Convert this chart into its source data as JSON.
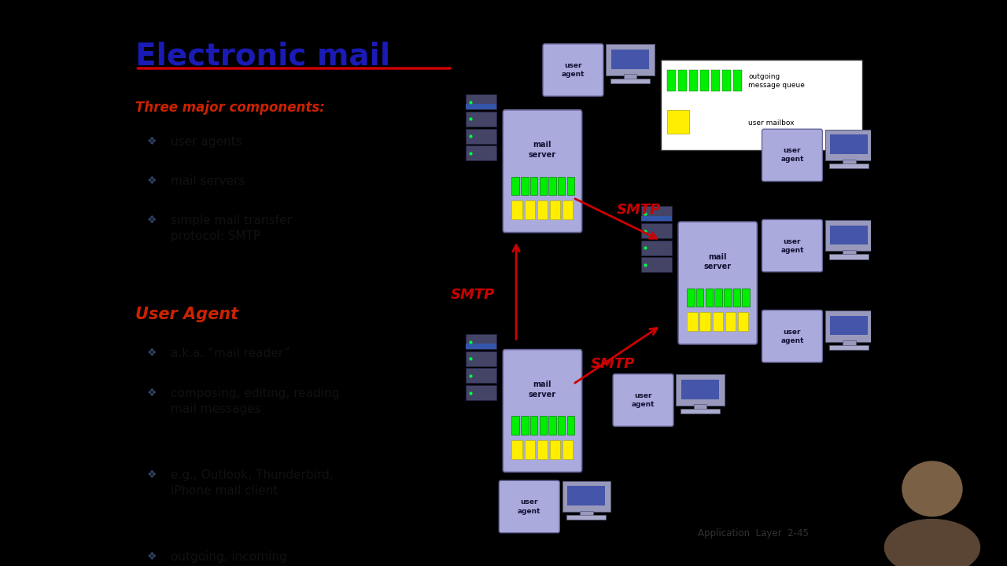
{
  "title": "Electronic mail",
  "title_color": "#1a1ab5",
  "title_underline_color": "#cc0000",
  "bg_color": "#ffffff",
  "outer_bg": "#000000",
  "left_panel": {
    "section1_title": "Three major components:",
    "section1_color": "#cc2200",
    "section1_items": [
      "user agents",
      "mail servers",
      "simple mail transfer\nprotocol: SMTP"
    ],
    "section2_title": "User Agent",
    "section2_color": "#cc2200",
    "section2_items": [
      "a.k.a. “mail reader”",
      "composing, editing, reading\nmail messages",
      "e.g., Outlook, Thunderbird,\niPhone mail client",
      "outgoing, incoming\nmessages stored on server"
    ]
  },
  "smtp_color": "#cc0000",
  "arrow_color": "#cc0000",
  "server_box_color": "#aaaadd",
  "agent_box_color": "#aaaadd",
  "green_color": "#00ee00",
  "yellow_color": "#ffee00",
  "footer": "Application  Layer  2-45",
  "footer_color": "#333333"
}
